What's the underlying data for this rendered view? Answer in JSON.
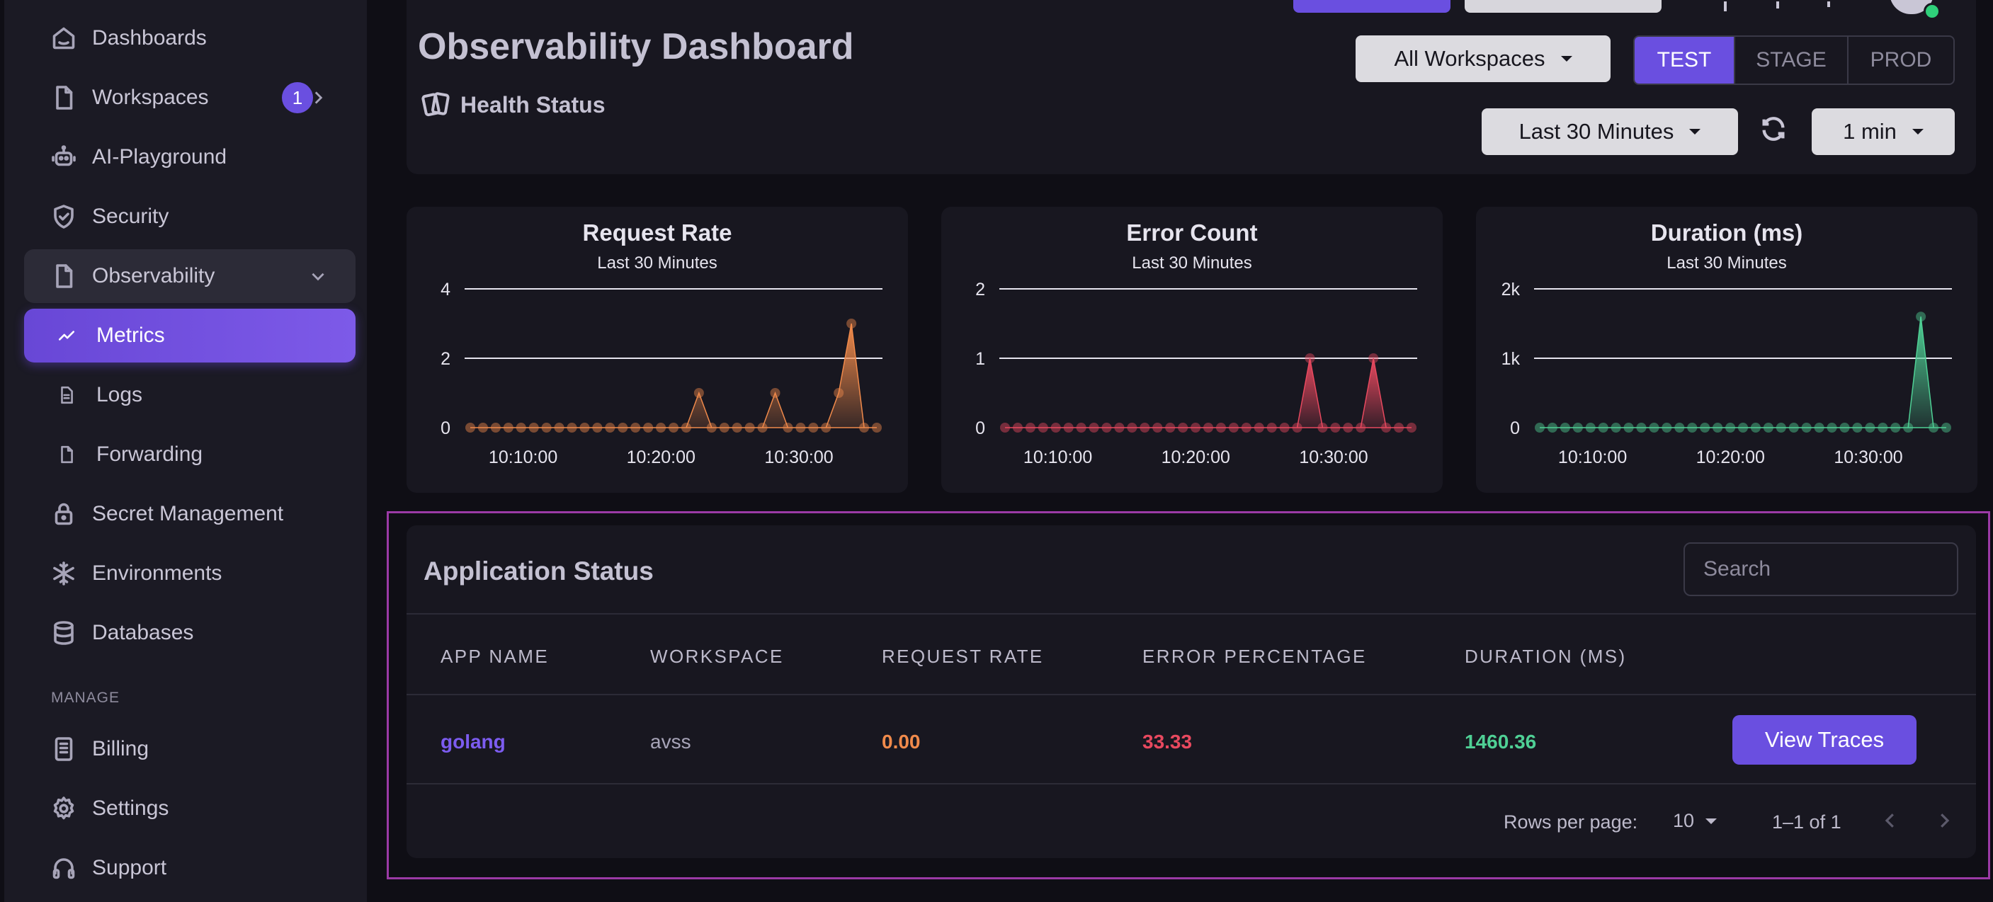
{
  "sidebar": {
    "items": [
      {
        "label": "Dashboards"
      },
      {
        "label": "Workspaces",
        "badge": "1"
      },
      {
        "label": "AI-Playground"
      },
      {
        "label": "Security"
      },
      {
        "label": "Observability"
      },
      {
        "label": "Metrics"
      },
      {
        "label": "Logs"
      },
      {
        "label": "Forwarding"
      },
      {
        "label": "Secret Management"
      },
      {
        "label": "Environments"
      },
      {
        "label": "Databases"
      }
    ],
    "section_label": "MANAGE",
    "manage_items": [
      {
        "label": "Billing"
      },
      {
        "label": "Settings"
      },
      {
        "label": "Support"
      }
    ]
  },
  "header": {
    "title": "Observability Dashboard",
    "health_label": "Health Status",
    "workspace_select": "All Workspaces",
    "env_tabs": [
      "TEST",
      "STAGE",
      "PROD"
    ],
    "active_env": "TEST",
    "time_range": "Last 30 Minutes",
    "refresh_interval": "1 min"
  },
  "chart_data": [
    {
      "type": "area",
      "title": "Request Rate",
      "subtitle": "Last 30 Minutes",
      "x_ticks": [
        "10:10:00",
        "10:20:00",
        "10:30:00"
      ],
      "y_ticks": [
        "0",
        "2",
        "4"
      ],
      "ylim": [
        0,
        4
      ],
      "color": "#f08a4b",
      "values": [
        0,
        0,
        0,
        0,
        0,
        0,
        0,
        0,
        0,
        0,
        0,
        0,
        0,
        0,
        0,
        0,
        0,
        0,
        1,
        0,
        0,
        0,
        0,
        0,
        1,
        0,
        0,
        0,
        0,
        1,
        3,
        0,
        0
      ]
    },
    {
      "type": "area",
      "title": "Error Count",
      "subtitle": "Last 30 Minutes",
      "x_ticks": [
        "10:10:00",
        "10:20:00",
        "10:30:00"
      ],
      "y_ticks": [
        "0",
        "1",
        "2"
      ],
      "ylim": [
        0,
        2
      ],
      "color": "#e8495f",
      "values": [
        0,
        0,
        0,
        0,
        0,
        0,
        0,
        0,
        0,
        0,
        0,
        0,
        0,
        0,
        0,
        0,
        0,
        0,
        0,
        0,
        0,
        0,
        0,
        0,
        1,
        0,
        0,
        0,
        0,
        1,
        0,
        0,
        0
      ]
    },
    {
      "type": "area",
      "title": "Duration (ms)",
      "subtitle": "Last 30 Minutes",
      "x_ticks": [
        "10:10:00",
        "10:20:00",
        "10:30:00"
      ],
      "y_ticks": [
        "0",
        "1k",
        "2k"
      ],
      "ylim": [
        0,
        2000
      ],
      "color": "#4fd095",
      "values": [
        0,
        0,
        0,
        0,
        0,
        0,
        0,
        0,
        0,
        0,
        0,
        0,
        0,
        0,
        0,
        0,
        0,
        0,
        0,
        0,
        0,
        0,
        0,
        0,
        0,
        0,
        0,
        0,
        0,
        0,
        1600,
        0,
        0
      ]
    }
  ],
  "app_status": {
    "title": "Application Status",
    "search_placeholder": "Search",
    "columns": [
      "APP NAME",
      "WORKSPACE",
      "REQUEST RATE",
      "ERROR PERCENTAGE",
      "DURATION (MS)"
    ],
    "rows": [
      {
        "app_name": "golang",
        "workspace": "avss",
        "request_rate": "0.00",
        "error_percentage": "33.33",
        "duration": "1460.36",
        "action": "View Traces"
      }
    ],
    "pagination": {
      "rows_per_page_label": "Rows per page:",
      "rows_per_page": "10",
      "range": "1–1 of 1"
    }
  }
}
